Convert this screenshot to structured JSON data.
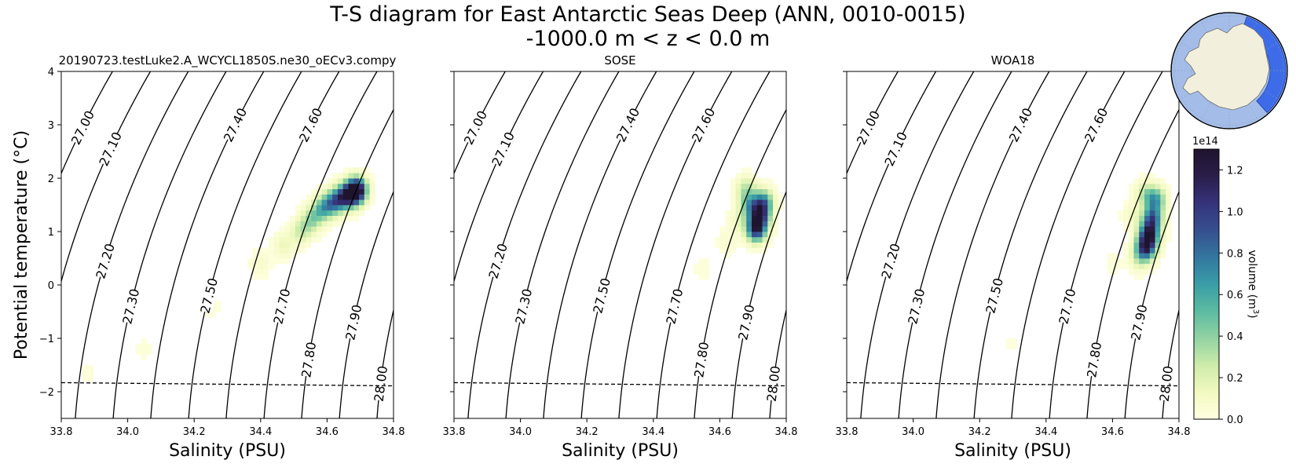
{
  "header": {
    "title_line1": "T-S diagram for East Antarctic Seas Deep (ANN, 0010-0015)",
    "title_line2": "-1000.0 m < z < 0.0 m"
  },
  "chart_data": {
    "type": "heatmap",
    "ylabel": "Potential temperature (°C)",
    "xlabel": "Salinity (PSU)",
    "xlim": [
      33.8,
      34.8
    ],
    "ylim": [
      -2.5,
      4.0
    ],
    "xticks": [
      "33.8",
      "34.0",
      "34.2",
      "34.4",
      "34.6",
      "34.8"
    ],
    "yticks": [
      "−2",
      "−1",
      "0",
      "1",
      "2",
      "3",
      "4"
    ],
    "freezing_line": {
      "s": [
        33.8,
        34.8
      ],
      "t": [
        -1.83,
        -1.89
      ],
      "style": "dashed"
    },
    "density_contours": [
      27.0,
      27.1,
      27.2,
      27.3,
      27.4,
      27.5,
      27.6,
      27.7,
      27.8,
      27.9,
      28.0
    ],
    "contour_labels": [
      "27.00",
      "27.10",
      "27.20",
      "27.30",
      "27.40",
      "27.50",
      "27.60",
      "27.70",
      "27.80",
      "27.90",
      "28.00"
    ],
    "colorbar": {
      "label": "volume (m³)",
      "label_main": "volume (m",
      "label_sup": "3",
      "label_end": ")",
      "scale_label": "1e14",
      "range": [
        0.0,
        1.3
      ],
      "ticks": [
        "0.0",
        "0.2",
        "0.4",
        "0.6",
        "0.8",
        "1.0",
        "1.2"
      ]
    },
    "panels": [
      {
        "title": "20190723.testLuke2.A_WCYCL1850S.ne30_oECv3.compy",
        "volume_blobs_1e14": [
          {
            "s": 34.69,
            "t": 1.78,
            "v": 1.3
          },
          {
            "s": 34.67,
            "t": 1.7,
            "v": 0.95
          },
          {
            "s": 34.64,
            "t": 1.62,
            "v": 0.75
          },
          {
            "s": 34.61,
            "t": 1.52,
            "v": 0.6
          },
          {
            "s": 34.58,
            "t": 1.4,
            "v": 0.45
          },
          {
            "s": 34.55,
            "t": 1.2,
            "v": 0.35
          },
          {
            "s": 34.52,
            "t": 1.0,
            "v": 0.25
          },
          {
            "s": 34.47,
            "t": 0.75,
            "v": 0.15
          },
          {
            "s": 34.4,
            "t": 0.4,
            "v": 0.08
          },
          {
            "s": 34.25,
            "t": -0.4,
            "v": 0.04
          },
          {
            "s": 34.05,
            "t": -1.2,
            "v": 0.03
          },
          {
            "s": 33.88,
            "t": -1.65,
            "v": 0.03
          }
        ]
      },
      {
        "title": "SOSE",
        "volume_blobs_1e14": [
          {
            "s": 34.71,
            "t": 1.05,
            "v": 1.1
          },
          {
            "s": 34.72,
            "t": 1.3,
            "v": 0.95
          },
          {
            "s": 34.73,
            "t": 1.55,
            "v": 0.75
          },
          {
            "s": 34.69,
            "t": 1.5,
            "v": 0.5
          },
          {
            "s": 34.68,
            "t": 1.8,
            "v": 0.3
          },
          {
            "s": 34.66,
            "t": 1.2,
            "v": 0.15
          },
          {
            "s": 34.62,
            "t": 0.8,
            "v": 0.06
          },
          {
            "s": 34.55,
            "t": 0.3,
            "v": 0.03
          }
        ]
      },
      {
        "title": "WOA18",
        "volume_blobs_1e14": [
          {
            "s": 34.7,
            "t": 0.7,
            "v": 1.05
          },
          {
            "s": 34.71,
            "t": 0.95,
            "v": 1.1
          },
          {
            "s": 34.72,
            "t": 1.25,
            "v": 0.85
          },
          {
            "s": 34.73,
            "t": 1.6,
            "v": 0.6
          },
          {
            "s": 34.7,
            "t": 1.7,
            "v": 0.3
          },
          {
            "s": 34.68,
            "t": 0.5,
            "v": 0.2
          },
          {
            "s": 34.66,
            "t": 1.3,
            "v": 0.12
          },
          {
            "s": 34.6,
            "t": 0.4,
            "v": 0.03
          },
          {
            "s": 34.3,
            "t": -1.1,
            "v": 0.02
          }
        ]
      }
    ]
  },
  "colors": {
    "land": "#f2f0dc",
    "ocean": "#a4bde8",
    "region": "#3e6ce8",
    "colormap": [
      "#ffffe0",
      "#f2f9c0",
      "#cdebaa",
      "#92d3a2",
      "#5bbba2",
      "#3a9da6",
      "#33769f",
      "#364f8f",
      "#35337a",
      "#2a1e4a",
      "#1f142e"
    ]
  }
}
